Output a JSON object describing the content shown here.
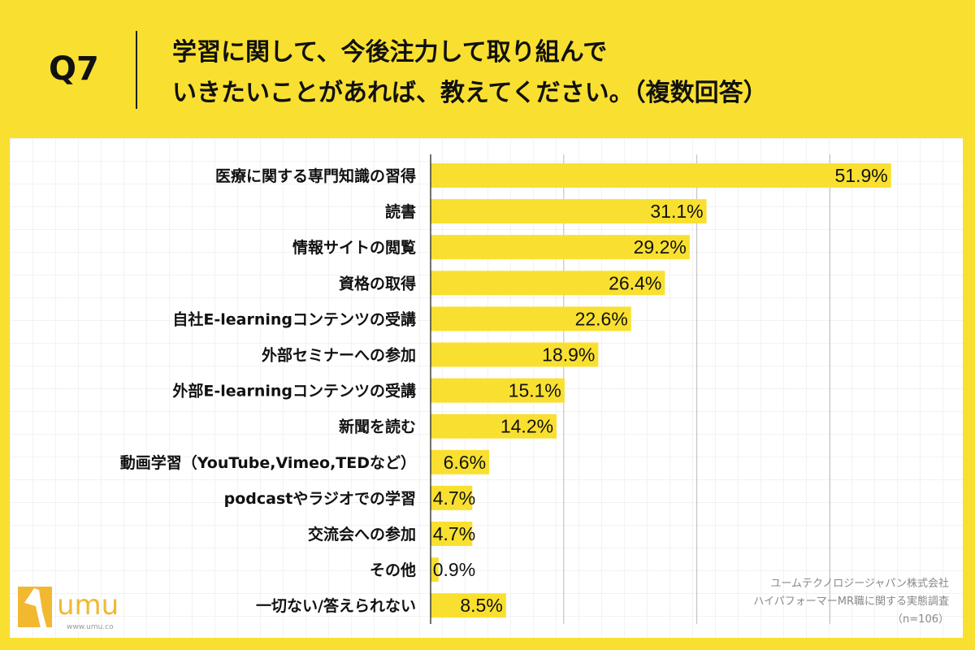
{
  "header": {
    "question": "Q7",
    "title": "学習に関して、今後注力して取り組んで\nいきたいことがあれば、教えてください。（複数回答）"
  },
  "source": {
    "line1": "ユームテクノロジージャパン株式会社",
    "line2": "ハイパフォーマーMR職に関する実態調査",
    "line3": "（n=106）"
  },
  "logo": {
    "name": "umu",
    "url": "www.umu.co"
  },
  "colors": {
    "bar": "#f9e030",
    "background": "#f9e030"
  },
  "chart_data": {
    "type": "bar",
    "orientation": "horizontal",
    "xlim": [
      0,
      60
    ],
    "gridlines": [
      15,
      30,
      45
    ],
    "grid": true,
    "categories": [
      "医療に関する専門知識の習得",
      "読書",
      "情報サイトの閲覧",
      "資格の取得",
      "自社E-learningコンテンツの受講",
      "外部セミナーへの参加",
      "外部E-learningコンテンツの受講",
      "新聞を読む",
      "動画学習（YouTube,Vimeo,TEDなど）",
      "podcastやラジオでの学習",
      "交流会への参加",
      "その他",
      "一切ない/答えられない"
    ],
    "values": [
      51.9,
      31.1,
      29.2,
      26.4,
      22.6,
      18.9,
      15.1,
      14.2,
      6.6,
      4.7,
      4.7,
      0.9,
      8.5
    ],
    "labels": [
      "51.9%",
      "31.1%",
      "29.2%",
      "26.4%",
      "22.6%",
      "18.9%",
      "15.1%",
      "14.2%",
      "6.6%",
      "4.7%",
      "4.7%",
      "0.9%",
      "8.5%"
    ]
  }
}
